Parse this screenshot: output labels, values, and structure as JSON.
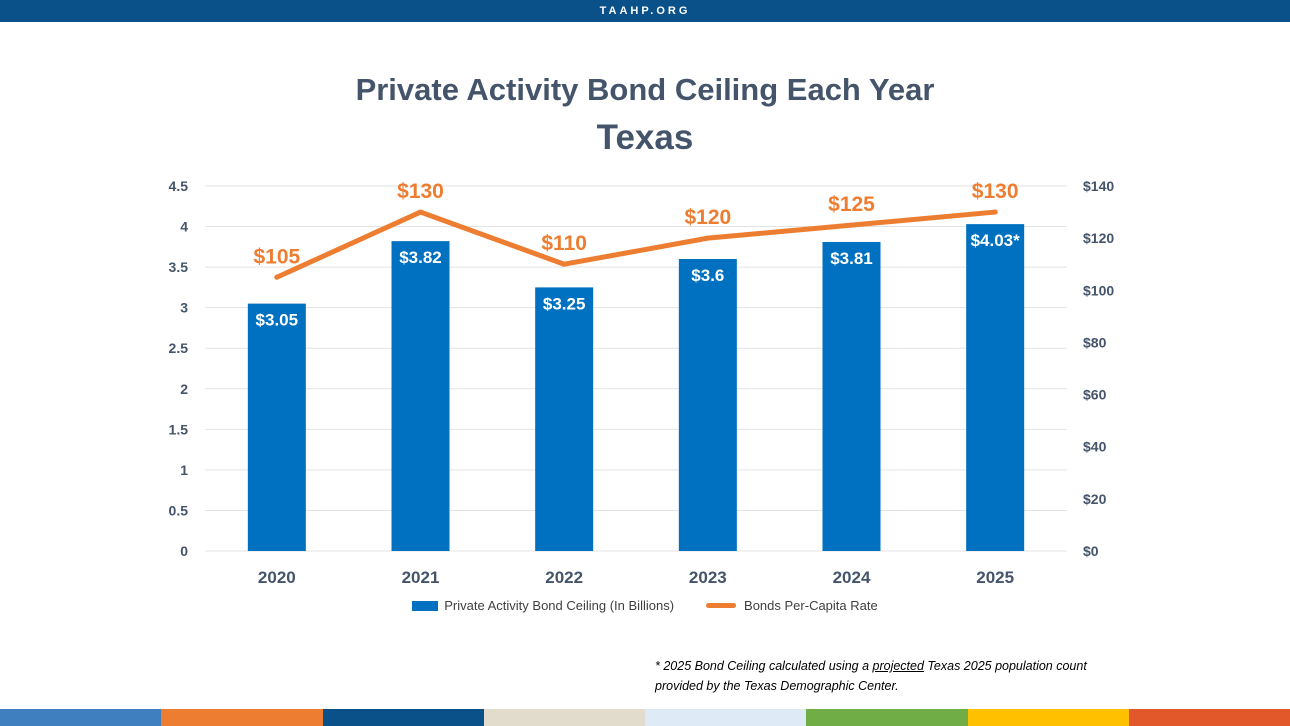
{
  "header": {
    "site": "TAAHP.ORG"
  },
  "chart_data": {
    "type": "bar",
    "title": "Private Activity Bond Ceiling Each Year",
    "subtitle": "Texas",
    "categories": [
      "2020",
      "2021",
      "2022",
      "2023",
      "2024",
      "2025"
    ],
    "series": [
      {
        "name": "Private Activity Bond Ceiling (In Billions)",
        "type": "bar",
        "axis": "left",
        "values": [
          3.05,
          3.82,
          3.25,
          3.6,
          3.81,
          4.03
        ],
        "labels": [
          "$3.05",
          "$3.82",
          "$3.25",
          "$3.6",
          "$3.81",
          "$4.03*"
        ],
        "color": "#0070c0"
      },
      {
        "name": "Bonds Per-Capita Rate",
        "type": "line",
        "axis": "right",
        "values": [
          105,
          130,
          110,
          120,
          125,
          130
        ],
        "labels": [
          "$105",
          "$130",
          "$110",
          "$120",
          "$125",
          "$130"
        ],
        "color": "#ed7d31"
      }
    ],
    "y_left": {
      "lim": [
        0,
        4.5
      ],
      "ticks": [
        "0",
        "0.5",
        "1",
        "1.5",
        "2",
        "2.5",
        "3",
        "3.5",
        "4",
        "4.5"
      ]
    },
    "y_right": {
      "lim": [
        0,
        140
      ],
      "ticks": [
        "$0",
        "$20",
        "$40",
        "$60",
        "$80",
        "$100",
        "$120",
        "$140"
      ]
    },
    "grid": true,
    "legend_position": "bottom"
  },
  "footnote": {
    "before": "* 2025 Bond Ceiling calculated using a ",
    "emphasis": "projected",
    "after": " Texas 2025 population count provided by the Texas Demographic Center."
  },
  "bottom_strip_colors": [
    "#3f7fc0",
    "#ed7d31",
    "#0a5089",
    "#e1dccb",
    "#deebf7",
    "#70ad47",
    "#ffc000",
    "#e2582b"
  ]
}
